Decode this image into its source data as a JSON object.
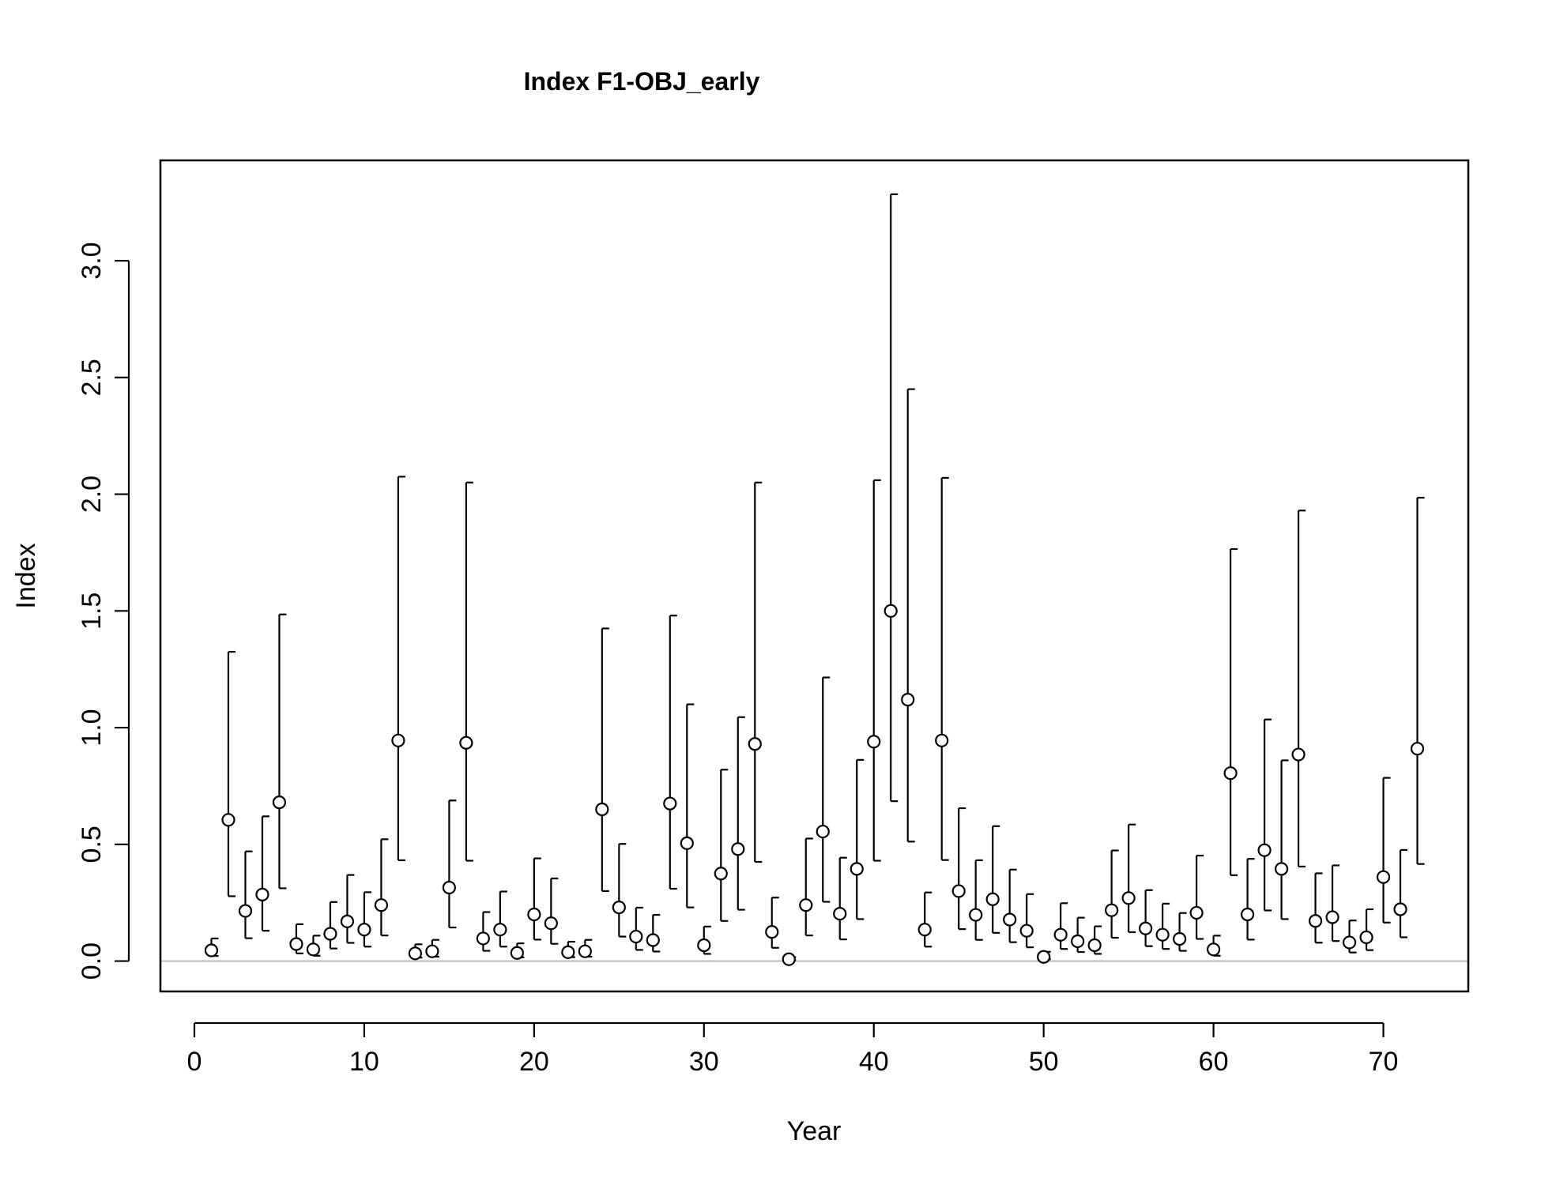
{
  "chart_data": {
    "type": "scatter",
    "title": "Index F1-OBJ_early",
    "xlabel": "Year",
    "ylabel": "Index",
    "xlim": [
      -2,
      75
    ],
    "ylim": [
      -0.13,
      3.43
    ],
    "x_ticks": [
      0,
      10,
      20,
      30,
      40,
      50,
      60,
      70
    ],
    "y_ticks": [
      0.0,
      0.5,
      1.0,
      1.5,
      2.0,
      2.5,
      3.0
    ],
    "x_tick_labels": [
      "0",
      "10",
      "20",
      "30",
      "40",
      "50",
      "60",
      "70"
    ],
    "y_tick_labels": [
      "0.0",
      "0.5",
      "1.0",
      "1.5",
      "2.0",
      "2.5",
      "3.0"
    ],
    "reference_line": {
      "y": 0,
      "color": "#bebebe"
    },
    "grid": false,
    "legend": "none",
    "colors": {
      "point_fill": "#ffffff",
      "point_stroke": "#000000",
      "error_bar": "#000000"
    },
    "series": [
      {
        "x": [
          1,
          2,
          3,
          4,
          5,
          6,
          7,
          8,
          9,
          10,
          11,
          12,
          13,
          14,
          15,
          16,
          17,
          18,
          19,
          20,
          21,
          22,
          23,
          24,
          25,
          26,
          27,
          28,
          29,
          30,
          31,
          32,
          33,
          34,
          35,
          36,
          37,
          38,
          39,
          40,
          41,
          42,
          43,
          44,
          45,
          46,
          47,
          48,
          49,
          50,
          51,
          52,
          53,
          54,
          55,
          56,
          57,
          58,
          59,
          60,
          61,
          62,
          63,
          64,
          65,
          66,
          67,
          68,
          69,
          70,
          71,
          72
        ],
        "y": [
          0.046,
          0.605,
          0.215,
          0.285,
          0.68,
          0.073,
          0.05,
          0.117,
          0.17,
          0.135,
          0.24,
          0.945,
          0.033,
          0.042,
          0.315,
          0.935,
          0.097,
          0.135,
          0.035,
          0.2,
          0.162,
          0.038,
          0.042,
          0.65,
          0.23,
          0.105,
          0.09,
          0.675,
          0.505,
          0.068,
          0.375,
          0.48,
          0.93,
          0.125,
          0.008,
          0.24,
          0.555,
          0.203,
          0.395,
          0.94,
          1.5,
          1.12,
          0.135,
          0.945,
          0.3,
          0.198,
          0.265,
          0.178,
          0.13,
          0.018,
          0.113,
          0.085,
          0.068,
          0.218,
          0.27,
          0.14,
          0.113,
          0.095,
          0.207,
          0.05,
          0.805,
          0.2,
          0.475,
          0.395,
          0.885,
          0.172,
          0.188,
          0.08,
          0.102,
          0.36,
          0.222,
          0.91
        ],
        "lower": [
          0.022,
          0.278,
          0.098,
          0.13,
          0.312,
          0.033,
          0.023,
          0.054,
          0.078,
          0.062,
          0.11,
          0.432,
          0.015,
          0.019,
          0.144,
          0.43,
          0.044,
          0.062,
          0.016,
          0.092,
          0.074,
          0.017,
          0.019,
          0.3,
          0.105,
          0.048,
          0.041,
          0.31,
          0.23,
          0.031,
          0.172,
          0.22,
          0.425,
          0.057,
          0.004,
          0.11,
          0.254,
          0.093,
          0.18,
          0.43,
          0.685,
          0.512,
          0.062,
          0.433,
          0.137,
          0.091,
          0.121,
          0.081,
          0.059,
          0.008,
          0.052,
          0.039,
          0.031,
          0.1,
          0.124,
          0.064,
          0.052,
          0.044,
          0.095,
          0.023,
          0.368,
          0.092,
          0.217,
          0.18,
          0.405,
          0.079,
          0.086,
          0.037,
          0.047,
          0.165,
          0.102,
          0.416
        ],
        "upper": [
          0.097,
          1.325,
          0.47,
          0.62,
          1.485,
          0.158,
          0.109,
          0.253,
          0.369,
          0.295,
          0.522,
          2.075,
          0.072,
          0.091,
          0.688,
          2.05,
          0.21,
          0.298,
          0.076,
          0.44,
          0.354,
          0.083,
          0.091,
          1.425,
          0.502,
          0.229,
          0.198,
          1.48,
          1.1,
          0.148,
          0.82,
          1.045,
          2.05,
          0.272,
          0.017,
          0.525,
          1.215,
          0.443,
          0.862,
          2.06,
          3.285,
          2.45,
          0.294,
          2.07,
          0.655,
          0.432,
          0.578,
          0.392,
          0.287,
          0.04,
          0.248,
          0.186,
          0.149,
          0.474,
          0.585,
          0.304,
          0.246,
          0.206,
          0.452,
          0.109,
          1.765,
          0.438,
          1.035,
          0.86,
          1.93,
          0.376,
          0.41,
          0.174,
          0.222,
          0.785,
          0.476,
          1.985
        ]
      }
    ]
  }
}
